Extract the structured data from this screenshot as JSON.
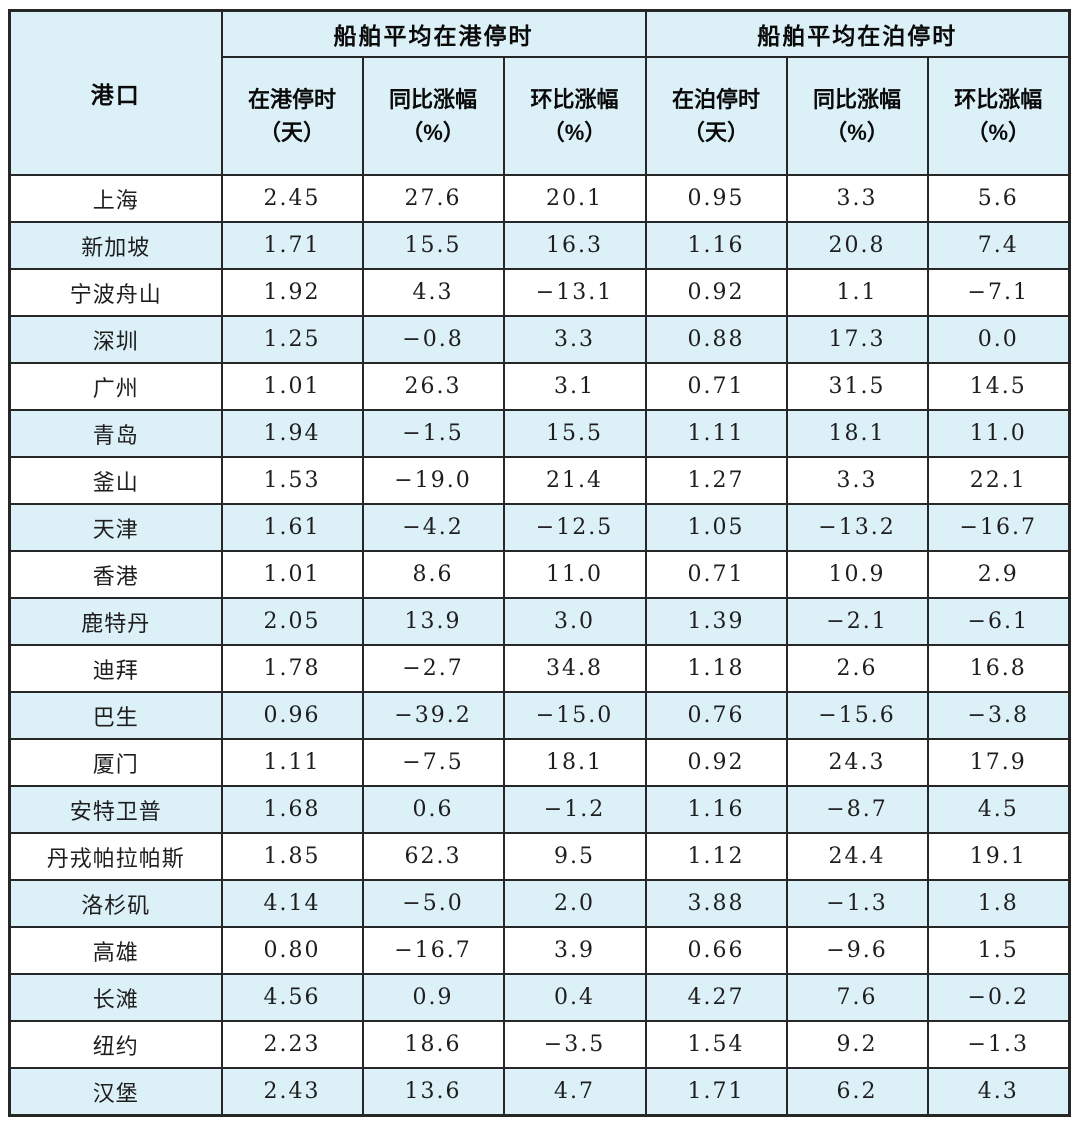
{
  "colors": {
    "header_bg": "#dcf0f7",
    "stripe_bg": "#dcf0f7",
    "row_bg": "#ffffff",
    "border": "#272727",
    "text": "#1e1e1e"
  },
  "chart_data": {
    "type": "table",
    "port_column_header": "港口",
    "groups": [
      {
        "label": "船舶平均在港停时",
        "sub_columns": [
          {
            "label": "在港停时",
            "unit": "（天）"
          },
          {
            "label": "同比涨幅",
            "unit": "（%）"
          },
          {
            "label": "环比涨幅",
            "unit": "（%）"
          }
        ]
      },
      {
        "label": "船舶平均在泊停时",
        "sub_columns": [
          {
            "label": "在泊停时",
            "unit": "（天）"
          },
          {
            "label": "同比涨幅",
            "unit": "（%）"
          },
          {
            "label": "环比涨幅",
            "unit": "（%）"
          }
        ]
      }
    ],
    "rows": [
      {
        "port": "上海",
        "values": [
          "2.45",
          "27.6",
          "20.1",
          "0.95",
          "3.3",
          "5.6"
        ]
      },
      {
        "port": "新加坡",
        "values": [
          "1.71",
          "15.5",
          "16.3",
          "1.16",
          "20.8",
          "7.4"
        ]
      },
      {
        "port": "宁波舟山",
        "values": [
          "1.92",
          "4.3",
          "-13.1",
          "0.92",
          "1.1",
          "-7.1"
        ]
      },
      {
        "port": "深圳",
        "values": [
          "1.25",
          "-0.8",
          "3.3",
          "0.88",
          "17.3",
          "0.0"
        ]
      },
      {
        "port": "广州",
        "values": [
          "1.01",
          "26.3",
          "3.1",
          "0.71",
          "31.5",
          "14.5"
        ]
      },
      {
        "port": "青岛",
        "values": [
          "1.94",
          "-1.5",
          "15.5",
          "1.11",
          "18.1",
          "11.0"
        ]
      },
      {
        "port": "釜山",
        "values": [
          "1.53",
          "-19.0",
          "21.4",
          "1.27",
          "3.3",
          "22.1"
        ]
      },
      {
        "port": "天津",
        "values": [
          "1.61",
          "-4.2",
          "-12.5",
          "1.05",
          "-13.2",
          "-16.7"
        ]
      },
      {
        "port": "香港",
        "values": [
          "1.01",
          "8.6",
          "11.0",
          "0.71",
          "10.9",
          "2.9"
        ]
      },
      {
        "port": "鹿特丹",
        "values": [
          "2.05",
          "13.9",
          "3.0",
          "1.39",
          "-2.1",
          "-6.1"
        ]
      },
      {
        "port": "迪拜",
        "values": [
          "1.78",
          "-2.7",
          "34.8",
          "1.18",
          "2.6",
          "16.8"
        ]
      },
      {
        "port": "巴生",
        "values": [
          "0.96",
          "-39.2",
          "-15.0",
          "0.76",
          "-15.6",
          "-3.8"
        ]
      },
      {
        "port": "厦门",
        "values": [
          "1.11",
          "-7.5",
          "18.1",
          "0.92",
          "24.3",
          "17.9"
        ]
      },
      {
        "port": "安特卫普",
        "values": [
          "1.68",
          "0.6",
          "-1.2",
          "1.16",
          "-8.7",
          "4.5"
        ]
      },
      {
        "port": "丹戎帕拉帕斯",
        "values": [
          "1.85",
          "62.3",
          "9.5",
          "1.12",
          "24.4",
          "19.1"
        ]
      },
      {
        "port": "洛杉矶",
        "values": [
          "4.14",
          "-5.0",
          "2.0",
          "3.88",
          "-1.3",
          "1.8"
        ]
      },
      {
        "port": "高雄",
        "values": [
          "0.80",
          "-16.7",
          "3.9",
          "0.66",
          "-9.6",
          "1.5"
        ]
      },
      {
        "port": "长滩",
        "values": [
          "4.56",
          "0.9",
          "0.4",
          "4.27",
          "7.6",
          "-0.2"
        ]
      },
      {
        "port": "纽约",
        "values": [
          "2.23",
          "18.6",
          "-3.5",
          "1.54",
          "9.2",
          "-1.3"
        ]
      },
      {
        "port": "汉堡",
        "values": [
          "2.43",
          "13.6",
          "4.7",
          "1.71",
          "6.2",
          "4.3"
        ]
      }
    ]
  }
}
